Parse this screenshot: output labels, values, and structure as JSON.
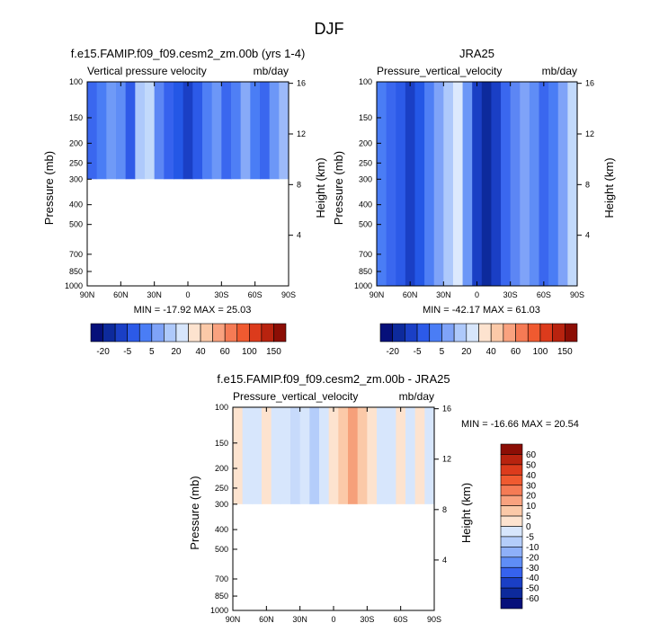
{
  "figure": {
    "title": "DJF"
  },
  "chart_data": [
    {
      "id": "model",
      "type": "heatmap",
      "title": "f.e15.FAMIP.f09_f09.cesm2_zm.00b (yrs 1-4)",
      "subtitle_left": "Vertical pressure velocity",
      "subtitle_right": "mb/day",
      "ylabel": "Pressure (mb)",
      "ylabel_right": "Height (km)",
      "x_ticks": [
        "90N",
        "60N",
        "30N",
        "0",
        "30S",
        "60S",
        "90S"
      ],
      "y_ticks": [
        "100",
        "150",
        "200",
        "250",
        "300",
        "400",
        "500",
        "700",
        "850",
        "1000"
      ],
      "y_ticks_right": [
        "16",
        "12",
        "8",
        "4"
      ],
      "ylim": [
        1000,
        100
      ],
      "data_top_pressure": 100,
      "data_bottom_pressure": 300,
      "stats": "MIN = -17.92  MAX = 25.03",
      "min": -17.92,
      "max": 25.03,
      "columns": [
        "#3a67ef",
        "#4a7df5",
        "#6f9af7",
        "#5f8df6",
        "#2f5ae8",
        "#aec9fb",
        "#c2d9fb",
        "#5c86f4",
        "#3662ee",
        "#2457e6",
        "#1a3fc5",
        "#2c5ae8",
        "#4f7ff5",
        "#6c97f7",
        "#3a67ef",
        "#4f7ff5",
        "#87aaf8",
        "#4a7df5",
        "#3a67ef",
        "#6c97f7",
        "#9cb9f9"
      ]
    },
    {
      "id": "obs",
      "type": "heatmap",
      "title": "JRA25",
      "subtitle_left": "Pressure_vertical_velocity",
      "subtitle_right": "mb/day",
      "ylabel": "Pressure (mb)",
      "ylabel_right": "Height (km)",
      "x_ticks": [
        "90N",
        "60N",
        "30N",
        "0",
        "30S",
        "60S",
        "90S"
      ],
      "y_ticks": [
        "100",
        "150",
        "200",
        "250",
        "300",
        "400",
        "500",
        "700",
        "850",
        "1000"
      ],
      "y_ticks_right": [
        "16",
        "12",
        "8",
        "4"
      ],
      "ylim": [
        1000,
        100
      ],
      "data_top_pressure": 100,
      "data_bottom_pressure": 1000,
      "stats": "MIN = -42.17  MAX = 61.03",
      "min": -42.17,
      "max": 61.03,
      "columns": [
        "#4a7df5",
        "#3a67ef",
        "#2c5ae8",
        "#1a3fc5",
        "#2457e6",
        "#4f7ff5",
        "#7fa3f8",
        "#aec9fb",
        "#dce9fd",
        "#6c97f7",
        "#1a3fc5",
        "#0d2a9c",
        "#1a3fc5",
        "#3a67ef",
        "#5c86f4",
        "#7fa3f8",
        "#5f8df6",
        "#3a67ef",
        "#4a7df5",
        "#7fa3f8",
        "#c2d9fb"
      ]
    },
    {
      "id": "diff",
      "type": "heatmap",
      "title": "f.e15.FAMIP.f09_f09.cesm2_zm.00b - JRA25",
      "subtitle_left": "Pressure_vertical_velocity",
      "subtitle_right": "mb/day",
      "ylabel": "Pressure (mb)",
      "ylabel_right": "Height (km)",
      "x_ticks": [
        "90N",
        "60N",
        "30N",
        "0",
        "30S",
        "60S",
        "90S"
      ],
      "y_ticks": [
        "100",
        "150",
        "200",
        "250",
        "300",
        "400",
        "500",
        "700",
        "850",
        "1000"
      ],
      "y_ticks_right": [
        "16",
        "12",
        "8",
        "4"
      ],
      "ylim": [
        1000,
        100
      ],
      "data_top_pressure": 100,
      "data_bottom_pressure": 300,
      "stats": "MIN = -16.66  MAX = 20.54",
      "min": -16.66,
      "max": 20.54,
      "columns": [
        "#fde3cf",
        "#d7e6fc",
        "#d7e6fc",
        "#fde3cf",
        "#d7e6fc",
        "#d7e6fc",
        "#c7dafb",
        "#d7e6fc",
        "#b4cdfa",
        "#d7e6fc",
        "#fde3cf",
        "#fbc9a8",
        "#f6a07a",
        "#fbc9a8",
        "#fde3cf",
        "#d7e6fc",
        "#d7e6fc",
        "#fde3cf",
        "#d7e6fc",
        "#fde3cf",
        "#d7e6fc"
      ]
    }
  ],
  "colorbars": {
    "top": {
      "labels": [
        "-20",
        "-5",
        "5",
        "20",
        "40",
        "60",
        "100",
        "150"
      ],
      "colors": [
        "#06107a",
        "#0d2a9c",
        "#1a3fc5",
        "#2c5ae8",
        "#4a7df5",
        "#7fa3f8",
        "#aec9fb",
        "#d7e6fc",
        "#fde3cf",
        "#fbc9a8",
        "#f9a27f",
        "#f57b55",
        "#f05a30",
        "#dc3b1c",
        "#b8230f",
        "#8c0e05"
      ]
    },
    "diff": {
      "labels": [
        "60",
        "50",
        "40",
        "30",
        "20",
        "10",
        "5",
        "0",
        "-5",
        "-10",
        "-20",
        "-30",
        "-40",
        "-50",
        "-60"
      ],
      "colors": [
        "#8c0e05",
        "#b8230f",
        "#dc3b1c",
        "#f05a30",
        "#f57b55",
        "#f9a27f",
        "#fbc9a8",
        "#fde3cf",
        "#d7e6fc",
        "#b4cdfa",
        "#8eb0f9",
        "#5f8df6",
        "#3662ee",
        "#1a3fc5",
        "#0d2a9c",
        "#06107a"
      ]
    }
  }
}
